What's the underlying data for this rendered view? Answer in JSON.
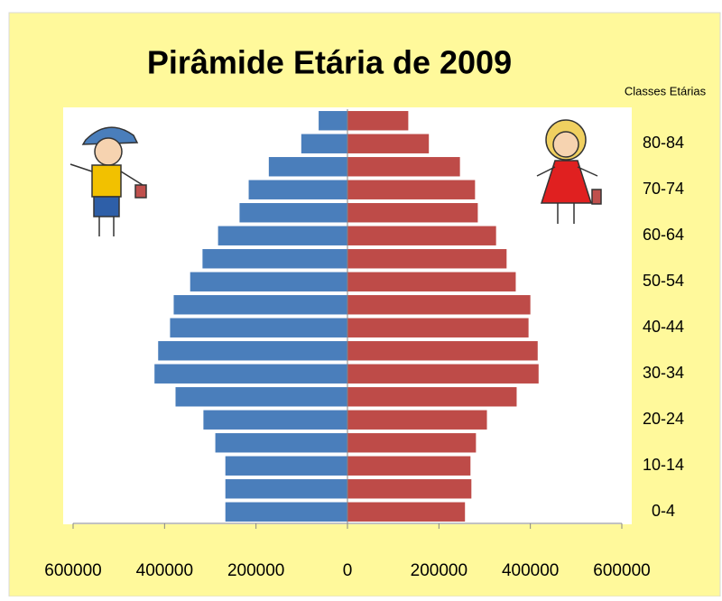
{
  "chart_data": {
    "type": "bar",
    "horizontal": true,
    "title": "Pirâmide Etária de 2009",
    "y_label": "Classes Etárias",
    "categories": [
      "0-4",
      null,
      "10-14",
      null,
      "20-24",
      null,
      "30-34",
      null,
      "40-44",
      null,
      "50-54",
      null,
      "60-64",
      null,
      "70-74",
      null,
      "80-84",
      null
    ],
    "series": [
      {
        "color": "#4a7ebb",
        "values": [
          -267000,
          -267000,
          -267000,
          -289000,
          -315000,
          -376000,
          -422000,
          -414000,
          -388000,
          -380000,
          -344000,
          -317000,
          -283000,
          -236000,
          -216000,
          -172000,
          -101000,
          -63000
        ]
      },
      {
        "color": "#be4b48",
        "values": [
          257000,
          271000,
          269000,
          281000,
          305000,
          370000,
          418000,
          416000,
          396000,
          400000,
          368000,
          348000,
          325000,
          285000,
          279000,
          246000,
          178000,
          133000
        ]
      }
    ],
    "xlim": [
      -600000,
      600000
    ],
    "xticks": [
      {
        "value": -600000,
        "label": "600000"
      },
      {
        "value": -400000,
        "label": "400000"
      },
      {
        "value": -200000,
        "label": "200000"
      },
      0,
      200000,
      400000,
      600000
    ]
  }
}
